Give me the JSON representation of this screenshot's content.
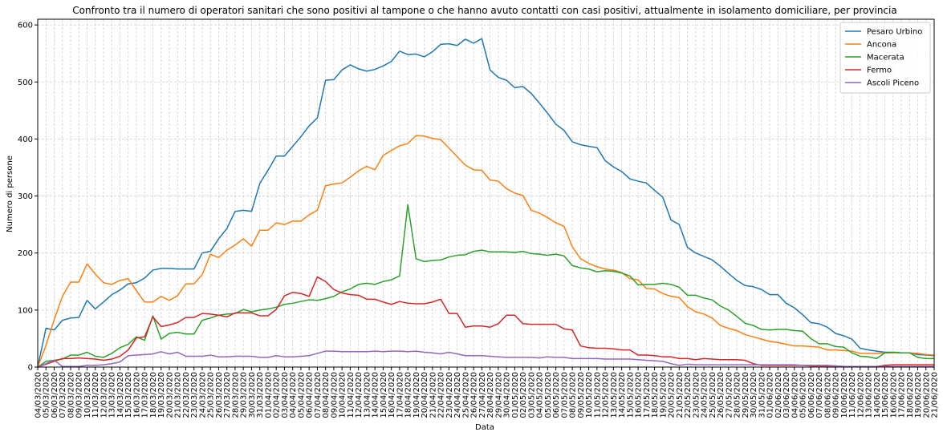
{
  "chart_data": {
    "type": "line",
    "title": "Confronto tra il numero di operatori sanitari che sono positivi al tampone o che hanno avuto contatti con casi positivi, attualmente in isolamento domiciliare, per provincia",
    "xlabel": "Data",
    "ylabel": "Numero di persone",
    "ylim": [
      0,
      610
    ],
    "yticks": [
      0,
      100,
      200,
      300,
      400,
      500,
      600
    ],
    "grid": true,
    "legend_position": "top-right",
    "x": [
      "04/03/2020",
      "05/03/2020",
      "06/03/2020",
      "07/03/2020",
      "08/03/2020",
      "09/03/2020",
      "10/03/2020",
      "11/03/2020",
      "12/03/2020",
      "13/03/2020",
      "14/03/2020",
      "15/03/2020",
      "16/03/2020",
      "17/03/2020",
      "18/03/2020",
      "19/03/2020",
      "20/03/2020",
      "21/03/2020",
      "22/03/2020",
      "23/03/2020",
      "24/03/2020",
      "25/03/2020",
      "26/03/2020",
      "27/03/2020",
      "28/03/2020",
      "29/03/2020",
      "30/03/2020",
      "31/03/2020",
      "01/04/2020",
      "02/04/2020",
      "03/04/2020",
      "04/04/2020",
      "05/04/2020",
      "06/04/2020",
      "07/04/2020",
      "08/04/2020",
      "09/04/2020",
      "10/04/2020",
      "11/04/2020",
      "12/04/2020",
      "13/04/2020",
      "14/04/2020",
      "15/04/2020",
      "16/04/2020",
      "17/04/2020",
      "18/04/2020",
      "19/04/2020",
      "20/04/2020",
      "21/04/2020",
      "22/04/2020",
      "23/04/2020",
      "24/04/2020",
      "25/04/2020",
      "26/04/2020",
      "27/04/2020",
      "28/04/2020",
      "29/04/2020",
      "30/04/2020",
      "01/05/2020",
      "02/05/2020",
      "03/05/2020",
      "04/05/2020",
      "05/05/2020",
      "06/05/2020",
      "07/05/2020",
      "08/05/2020",
      "09/05/2020",
      "10/05/2020",
      "11/05/2020",
      "12/05/2020",
      "13/05/2020",
      "14/05/2020",
      "15/05/2020",
      "16/05/2020",
      "17/05/2020",
      "18/05/2020",
      "19/05/2020",
      "20/05/2020",
      "21/05/2020",
      "22/05/2020",
      "23/05/2020",
      "24/05/2020",
      "25/05/2020",
      "26/05/2020",
      "27/05/2020",
      "28/05/2020",
      "29/05/2020",
      "30/05/2020",
      "31/05/2020",
      "01/06/2020",
      "02/06/2020",
      "03/06/2020",
      "04/06/2020",
      "05/06/2020",
      "06/06/2020",
      "07/06/2020",
      "08/06/2020",
      "09/06/2020",
      "10/06/2020",
      "11/06/2020",
      "12/06/2020",
      "13/06/2020",
      "14/06/2020",
      "15/06/2020",
      "16/06/2020",
      "17/06/2020",
      "18/06/2020",
      "19/06/2020",
      "20/06/2020",
      "21/06/2020"
    ],
    "xtick_labels": [
      "04/03/2020",
      "06/03/2020",
      "08/03/2020",
      "10/03/2020",
      "12/03/2020",
      "14/03/2020",
      "16/03/2020",
      "18/03/2020",
      "20/03/2020",
      "22/03/2020",
      "24/03/2020",
      "26/03/2020",
      "28/03/2020",
      "30/03/2020",
      "01/04/2020",
      "03/04/2020",
      "05/04/2020",
      "07/04/2020",
      "09/04/2020",
      "11/04/2020",
      "13/04/2020",
      "15/04/2020",
      "17/04/2020",
      "19/04/2020",
      "21/04/2020",
      "23/04/2020",
      "25/04/2020",
      "27/04/2020",
      "29/04/2020",
      "01/05/2020",
      "03/05/2020",
      "05/05/2020",
      "07/05/2020",
      "09/05/2020",
      "11/05/2020",
      "13/05/2020",
      "15/05/2020",
      "17/05/2020",
      "19/05/2020",
      "21/05/2020",
      "23/05/2020",
      "25/05/2020",
      "27/05/2020",
      "29/05/2020",
      "31/05/2020",
      "02/06/2020",
      "04/06/2020",
      "06/06/2020",
      "08/06/2020",
      "10/06/2020",
      "12/06/2020",
      "14/06/2020",
      "16/06/2020",
      "18/06/2020",
      "20/06/2020",
      "05/03/2020",
      "07/03/2020",
      "09/03/2020",
      "11/03/2020",
      "13/03/2020",
      "15/03/2020",
      "17/03/2020",
      "19/03/2020",
      "21/03/2020",
      "23/03/2020",
      "25/03/2020",
      "27/03/2020",
      "29/03/2020",
      "31/03/2020",
      "02/04/2020",
      "04/04/2020",
      "06/04/2020",
      "08/04/2020",
      "10/04/2020",
      "12/04/2020",
      "14/04/2020",
      "16/04/2020",
      "18/04/2020",
      "20/04/2020",
      "22/04/2020",
      "24/04/2020",
      "26/04/2020",
      "28/04/2020",
      "30/04/2020",
      "02/05/2020",
      "04/05/2020",
      "06/05/2020",
      "08/05/2020",
      "10/05/2020",
      "12/05/2020",
      "14/05/2020",
      "16/05/2020",
      "18/05/2020",
      "20/05/2020",
      "22/05/2020",
      "24/05/2020",
      "26/05/2020",
      "28/05/2020",
      "30/05/2020",
      "01/06/2020",
      "03/06/2020",
      "05/06/2020",
      "07/06/2020",
      "09/06/2020",
      "11/06/2020",
      "13/06/2020",
      "15/06/2020",
      "17/06/2020",
      "19/06/2020",
      "21/06/2020"
    ],
    "series": [
      {
        "name": "Pesaro Urbino",
        "color": "#1f77b4",
        "values": [
          0,
          68,
          65,
          82,
          86,
          87,
          117,
          102,
          114,
          127,
          135,
          146,
          148,
          156,
          170,
          173,
          173,
          172,
          172,
          172,
          200,
          203,
          225,
          243,
          273,
          275,
          273,
          322,
          345,
          370,
          370,
          387,
          404,
          423,
          437,
          503,
          504,
          521,
          530,
          523,
          519,
          522,
          528,
          536,
          554,
          548,
          549,
          544,
          553,
          566,
          567,
          564,
          575,
          568,
          576,
          521,
          508,
          503,
          490,
          492,
          480,
          463,
          445,
          426,
          415,
          395,
          390,
          387,
          385,
          362,
          351,
          343,
          330,
          326,
          323,
          310,
          298,
          258,
          250,
          210,
          200,
          194,
          188,
          177,
          164,
          152,
          143,
          141,
          136,
          127,
          127,
          112,
          104,
          92,
          78,
          76,
          70,
          59,
          55,
          49,
          33,
          30,
          28,
          26,
          26,
          25,
          25,
          22,
          21,
          20
        ]
      },
      {
        "name": "Ancona",
        "color": "#ff7f0e",
        "values": [
          0,
          38,
          83,
          124,
          149,
          149,
          181,
          163,
          148,
          145,
          152,
          155,
          134,
          114,
          114,
          124,
          117,
          125,
          146,
          146,
          162,
          198,
          192,
          205,
          214,
          225,
          212,
          240,
          240,
          253,
          250,
          256,
          256,
          267,
          275,
          318,
          321,
          323,
          333,
          344,
          352,
          346,
          371,
          380,
          388,
          392,
          406,
          405,
          401,
          399,
          384,
          369,
          354,
          346,
          345,
          328,
          326,
          313,
          305,
          301,
          275,
          270,
          262,
          253,
          247,
          211,
          190,
          182,
          176,
          172,
          170,
          166,
          155,
          153,
          138,
          137,
          129,
          124,
          122,
          106,
          97,
          93,
          86,
          73,
          68,
          64,
          57,
          53,
          49,
          45,
          43,
          40,
          37,
          37,
          36,
          35,
          30,
          30,
          29,
          28,
          24,
          24,
          24,
          25,
          25,
          25,
          25,
          24,
          22,
          21
        ]
      },
      {
        "name": "Macerata",
        "color": "#2ca02c",
        "values": [
          0,
          10,
          12,
          14,
          21,
          21,
          26,
          19,
          17,
          24,
          34,
          40,
          53,
          47,
          90,
          49,
          59,
          61,
          58,
          58,
          82,
          86,
          91,
          93,
          94,
          101,
          97,
          100,
          102,
          105,
          110,
          112,
          115,
          118,
          117,
          120,
          124,
          132,
          137,
          145,
          147,
          145,
          150,
          153,
          160,
          285,
          190,
          185,
          187,
          188,
          193,
          196,
          197,
          203,
          205,
          202,
          202,
          202,
          201,
          203,
          199,
          198,
          196,
          198,
          195,
          178,
          174,
          172,
          167,
          169,
          168,
          165,
          160,
          144,
          145,
          145,
          147,
          145,
          140,
          126,
          126,
          121,
          118,
          107,
          100,
          89,
          77,
          73,
          66,
          65,
          66,
          66,
          64,
          63,
          50,
          41,
          41,
          36,
          35,
          25,
          19,
          18,
          15,
          25,
          26,
          25,
          25,
          17,
          15,
          15
        ]
      },
      {
        "name": "Fermo",
        "color": "#d62728",
        "values": [
          0,
          5,
          10,
          15,
          15,
          16,
          15,
          14,
          12,
          14,
          19,
          30,
          51,
          53,
          88,
          71,
          74,
          78,
          87,
          87,
          94,
          93,
          91,
          88,
          95,
          95,
          95,
          90,
          90,
          101,
          125,
          131,
          129,
          124,
          158,
          150,
          136,
          130,
          127,
          126,
          119,
          119,
          114,
          110,
          115,
          112,
          111,
          111,
          114,
          119,
          94,
          94,
          70,
          72,
          72,
          70,
          76,
          91,
          91,
          76,
          75,
          75,
          75,
          75,
          67,
          65,
          37,
          34,
          33,
          33,
          32,
          30,
          30,
          21,
          21,
          20,
          18,
          18,
          15,
          15,
          13,
          15,
          14,
          13,
          13,
          13,
          12,
          6,
          3,
          3,
          3,
          3,
          3,
          3,
          2,
          2,
          2,
          2,
          1,
          1,
          1,
          1,
          1,
          3,
          4,
          4,
          4,
          4,
          4,
          4
        ]
      },
      {
        "name": "Ascoli Piceno",
        "color": "#9467bd",
        "values": [
          0,
          6,
          12,
          1,
          1,
          1,
          3,
          3,
          4,
          6,
          9,
          20,
          21,
          22,
          23,
          27,
          23,
          26,
          19,
          19,
          19,
          21,
          18,
          18,
          19,
          19,
          19,
          17,
          17,
          20,
          18,
          18,
          19,
          20,
          24,
          28,
          28,
          27,
          27,
          27,
          27,
          28,
          27,
          28,
          28,
          27,
          28,
          26,
          25,
          23,
          26,
          23,
          20,
          20,
          20,
          19,
          18,
          17,
          17,
          17,
          17,
          16,
          18,
          17,
          17,
          15,
          15,
          15,
          15,
          14,
          14,
          14,
          14,
          13,
          12,
          11,
          10,
          6,
          3,
          5,
          4,
          4,
          4,
          4,
          4,
          4,
          4,
          4,
          4,
          4,
          4,
          4,
          4,
          3,
          3,
          3,
          3,
          2,
          1,
          1,
          1,
          1,
          1,
          1,
          1,
          1,
          1,
          1,
          1,
          1
        ]
      }
    ]
  }
}
